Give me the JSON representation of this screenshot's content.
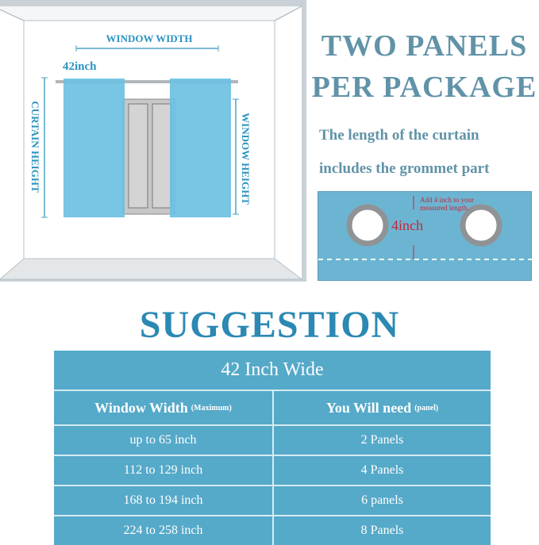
{
  "diagram": {
    "window_width_label": "WINDOW WIDTH",
    "width_value": "42inch",
    "curtain_height_label": "CURTAIN HEIGHT",
    "window_height_label": "WINDOW HEIGHT"
  },
  "headline": {
    "line1": "TWO PANELS",
    "line2": "PER PACKAGE"
  },
  "note": {
    "line1": "The length of the curtain",
    "line2": "includes the grommet  part"
  },
  "grommet": {
    "measure": "4inch",
    "hint_line1": "Add 4 inch to your",
    "hint_line2": "measured length."
  },
  "suggestion_title": "SUGGESTION",
  "table": {
    "title": "42 Inch Wide",
    "col1": "Window Width",
    "col1_note": "(Maximum)",
    "col2": "You Will need",
    "col2_note": "(panel)",
    "rows": [
      {
        "width": "up to 65 inch",
        "need": "2 Panels"
      },
      {
        "width": "112 to 129 inch",
        "need": "4 Panels"
      },
      {
        "width": "168 to 194 inch",
        "need": "6 panels"
      },
      {
        "width": "224 to 258 inch",
        "need": "8 Panels"
      }
    ]
  },
  "colors": {
    "curtain": "#6cc0e2",
    "table": "#55a9c9",
    "accent": "#2b89b3",
    "red": "#c0283c"
  }
}
